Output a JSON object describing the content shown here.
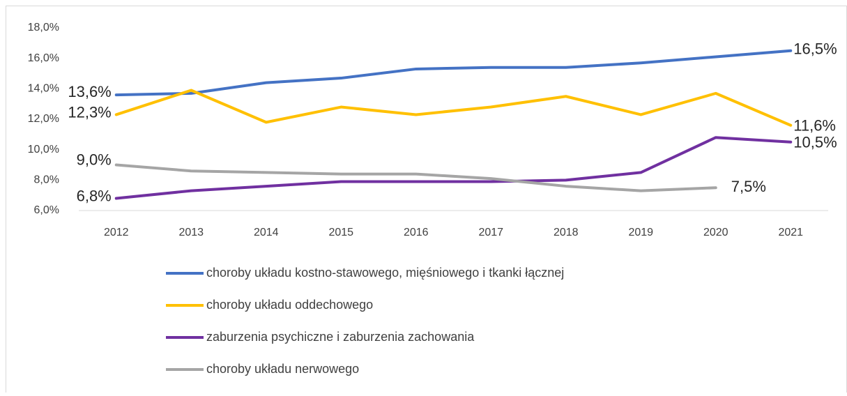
{
  "chart_data": {
    "type": "line",
    "categories": [
      "2012",
      "2013",
      "2014",
      "2015",
      "2016",
      "2017",
      "2018",
      "2019",
      "2020",
      "2021"
    ],
    "ylim": [
      6,
      18
    ],
    "yticks": [
      {
        "value": 6,
        "label": "6,0%"
      },
      {
        "value": 8,
        "label": "8,0%"
      },
      {
        "value": 10,
        "label": "10,0%"
      },
      {
        "value": 12,
        "label": "12,0%"
      },
      {
        "value": 14,
        "label": "14,0%"
      },
      {
        "value": 16,
        "label": "16,0%"
      },
      {
        "value": 18,
        "label": "18,0%"
      }
    ],
    "grid": false,
    "legend": "bottom",
    "series": [
      {
        "name": "choroby układu kostno-stawowego, mięśniowego i tkanki łącznej",
        "color": "#4472c4",
        "values": [
          13.6,
          13.7,
          14.4,
          14.7,
          15.3,
          15.4,
          15.4,
          15.7,
          16.1,
          16.5
        ],
        "value_labels": [
          "13,6%",
          null,
          null,
          null,
          null,
          null,
          null,
          null,
          null,
          "16,5%"
        ]
      },
      {
        "name": "choroby układu oddechowego",
        "color": "#ffc000",
        "values": [
          12.3,
          13.9,
          11.8,
          12.8,
          12.3,
          12.8,
          13.5,
          12.3,
          13.7,
          11.6
        ],
        "value_labels": [
          "12,3%",
          null,
          null,
          null,
          null,
          null,
          null,
          null,
          null,
          "11,6%"
        ]
      },
      {
        "name": "zaburzenia psychiczne i zaburzenia zachowania",
        "color": "#7030a0",
        "values": [
          6.8,
          7.3,
          7.6,
          7.9,
          7.9,
          7.9,
          8.0,
          8.5,
          10.8,
          10.5
        ],
        "value_labels": [
          "6,8%",
          null,
          null,
          null,
          null,
          null,
          null,
          null,
          null,
          "10,5%"
        ]
      },
      {
        "name": "choroby układu nerwowego",
        "color": "#a5a5a5",
        "values": [
          9.0,
          8.6,
          8.5,
          8.4,
          8.4,
          8.1,
          7.6,
          7.3,
          7.5,
          null
        ],
        "value_labels": [
          "9,0%",
          null,
          null,
          null,
          null,
          null,
          null,
          null,
          "7,5%",
          null
        ]
      }
    ]
  }
}
